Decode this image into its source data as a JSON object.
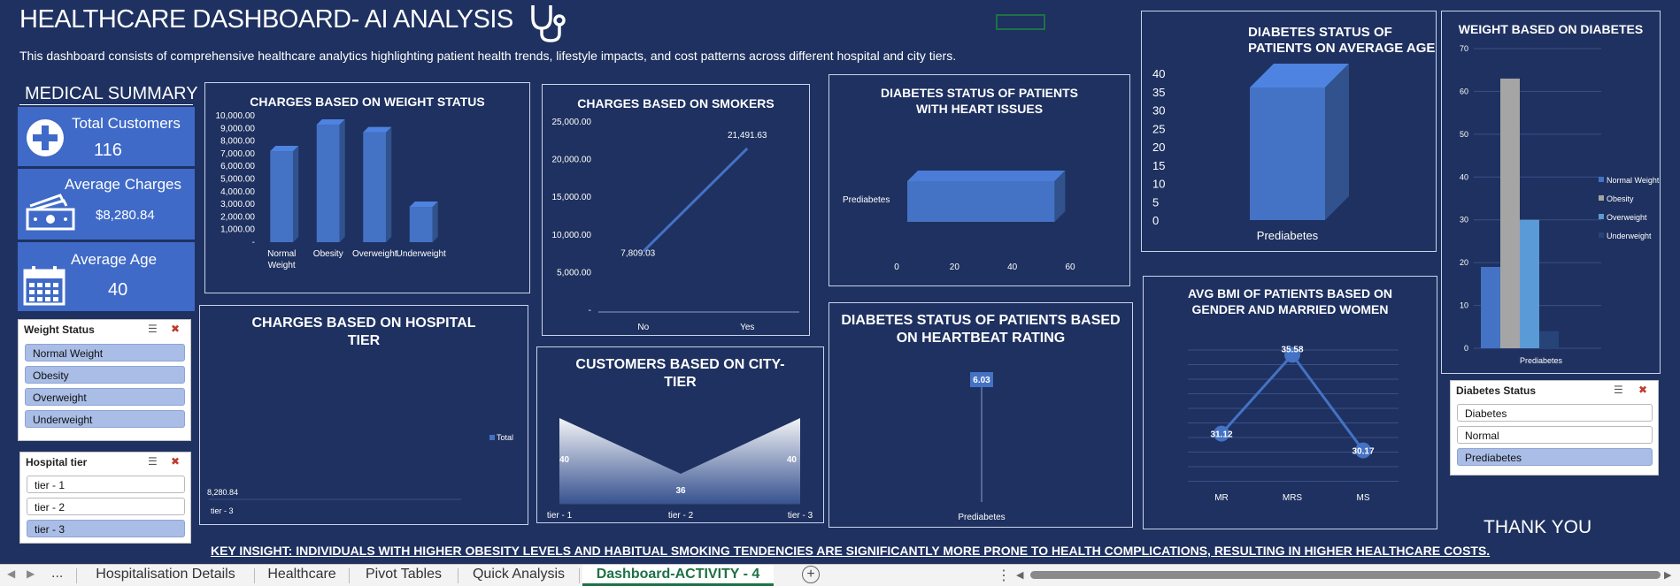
{
  "header": {
    "title": "HEALTHCARE DASHBOARD- AI ANALYSIS",
    "subtitle": "This dashboard consists of comprehensive healthcare analytics highlighting patient health trends, lifestyle impacts, and cost patterns across different hospital and city tiers."
  },
  "summary": {
    "heading": "MEDICAL SUMMARY",
    "kpis": [
      {
        "label": "Total Customers",
        "value": "116",
        "icon": "plus-circle-icon"
      },
      {
        "label": "Average Charges",
        "value": "$8,280.84",
        "icon": "cash-icon"
      },
      {
        "label": "Average Age",
        "value": "40",
        "icon": "calendar-icon"
      }
    ]
  },
  "slicers": {
    "weight": {
      "title": "Weight Status",
      "items": [
        "Normal Weight",
        "Obesity",
        "Overweight",
        "Underweight"
      ],
      "selected": [
        true,
        true,
        true,
        true
      ]
    },
    "hospital": {
      "title": "Hospital tier",
      "items": [
        "tier - 1",
        "tier - 2",
        "tier - 3"
      ],
      "selected": [
        false,
        false,
        true
      ]
    },
    "diabetes": {
      "title": "Diabetes Status",
      "items": [
        "Diabetes",
        "Normal",
        "Prediabetes"
      ],
      "selected": [
        false,
        false,
        true
      ]
    }
  },
  "insight": "KEY INSIGHT: INDIVIDUALS WITH HIGHER OBESITY LEVELS AND HABITUAL SMOKING TENDENCIES ARE SIGNIFICANTLY MORE PRONE TO HEALTH COMPLICATIONS, RESULTING IN HIGHER HEALTHCARE COSTS.",
  "thanks": "THANK YOU",
  "colors": {
    "background": "#1e3160",
    "bar": "#4472c4",
    "kpi": "#3f6ac7",
    "grey_bar": "#a5a5a5",
    "light_bar": "#5b9bd5",
    "dark_bar": "#264478"
  },
  "tabs": {
    "items": [
      "Hospitalisation Details",
      "Healthcare",
      "Pivot Tables",
      "Quick Analysis",
      "Dashboard-ACTIVITY - 4"
    ],
    "active": "Dashboard-ACTIVITY - 4",
    "more": "...",
    "add_icon": "plus-circle-icon"
  },
  "chart_data": [
    {
      "id": "weight",
      "type": "bar",
      "title": "CHARGES BASED ON WEIGHT STATUS",
      "categories": [
        "Normal Weight",
        "Obesity",
        "Overweight",
        "Underweight"
      ],
      "values": [
        7200,
        9300,
        8700,
        2800
      ],
      "yticks": [
        "-",
        "1,000.00",
        "2,000.00",
        "3,000.00",
        "4,000.00",
        "5,000.00",
        "6,000.00",
        "7,000.00",
        "8,000.00",
        "9,000.00",
        "10,000.00"
      ],
      "ylim": [
        0,
        10000
      ]
    },
    {
      "id": "smokers",
      "type": "line",
      "title": "CHARGES BASED ON SMOKERS",
      "categories": [
        "No",
        "Yes"
      ],
      "values": [
        7809.03,
        21491.63
      ],
      "labels": [
        "7,809.03",
        "21,491.63"
      ],
      "yticks": [
        "-",
        "5,000.00",
        "10,000.00",
        "15,000.00",
        "20,000.00",
        "25,000.00"
      ],
      "ylim": [
        0,
        25000
      ]
    },
    {
      "id": "heart",
      "type": "bar",
      "orientation": "horizontal",
      "title": "DIABETES STATUS OF PATIENTS WITH HEART ISSUES",
      "categories": [
        "Prediabetes"
      ],
      "values": [
        54
      ],
      "xticks": [
        "0",
        "20",
        "40",
        "60"
      ],
      "xlim": [
        0,
        60
      ]
    },
    {
      "id": "avg_age",
      "type": "bar",
      "title": "DIABETES STATUS OF PATIENTS ON AVERAGE AGE",
      "categories": [
        "Prediabetes"
      ],
      "values": [
        40
      ],
      "yticks": [
        "0",
        "5",
        "10",
        "15",
        "20",
        "25",
        "30",
        "35",
        "40"
      ],
      "ylim": [
        0,
        40
      ]
    },
    {
      "id": "wdiab",
      "type": "bar",
      "title": "WEIGHT BASED ON DIABETES",
      "categories": [
        "Prediabetes"
      ],
      "series": [
        {
          "name": "Normal Weight",
          "values": [
            19
          ]
        },
        {
          "name": "Obesity",
          "values": [
            63
          ]
        },
        {
          "name": "Overweight",
          "values": [
            30
          ]
        },
        {
          "name": "Underweight",
          "values": [
            4
          ]
        }
      ],
      "yticks": [
        "0",
        "10",
        "20",
        "30",
        "40",
        "50",
        "60",
        "70"
      ],
      "ylim": [
        0,
        70
      ],
      "legend": "right"
    },
    {
      "id": "hospital",
      "type": "bar",
      "title": "CHARGES BASED ON HOSPITAL TIER",
      "categories": [
        "tier - 3"
      ],
      "values": [
        8280.84
      ],
      "labels": [
        "8,280.84"
      ],
      "series": [
        {
          "name": "Total",
          "values": [
            8280.84
          ]
        }
      ],
      "legend": "right"
    },
    {
      "id": "city",
      "type": "area",
      "title": "CUSTOMERS BASED ON CITY-TIER",
      "categories": [
        "tier - 1",
        "tier - 2",
        "tier - 3"
      ],
      "values": [
        40,
        36,
        40
      ],
      "labels": [
        "40",
        "36",
        "40"
      ]
    },
    {
      "id": "heartbeat",
      "type": "line",
      "title": "DIABETES STATUS OF PATIENTS BASED ON HEARTBEAT RATING",
      "categories": [
        "Prediabetes"
      ],
      "values": [
        6.03
      ],
      "labels": [
        "6.03"
      ]
    },
    {
      "id": "bmi",
      "type": "line",
      "title": "AVG BMI OF PATIENTS BASED ON GENDER AND MARRIED WOMEN",
      "categories": [
        "MR",
        "MRS",
        "MS"
      ],
      "values": [
        31.12,
        35.58,
        30.17
      ],
      "labels": [
        "31.12",
        "35.58",
        "30.17"
      ]
    }
  ]
}
